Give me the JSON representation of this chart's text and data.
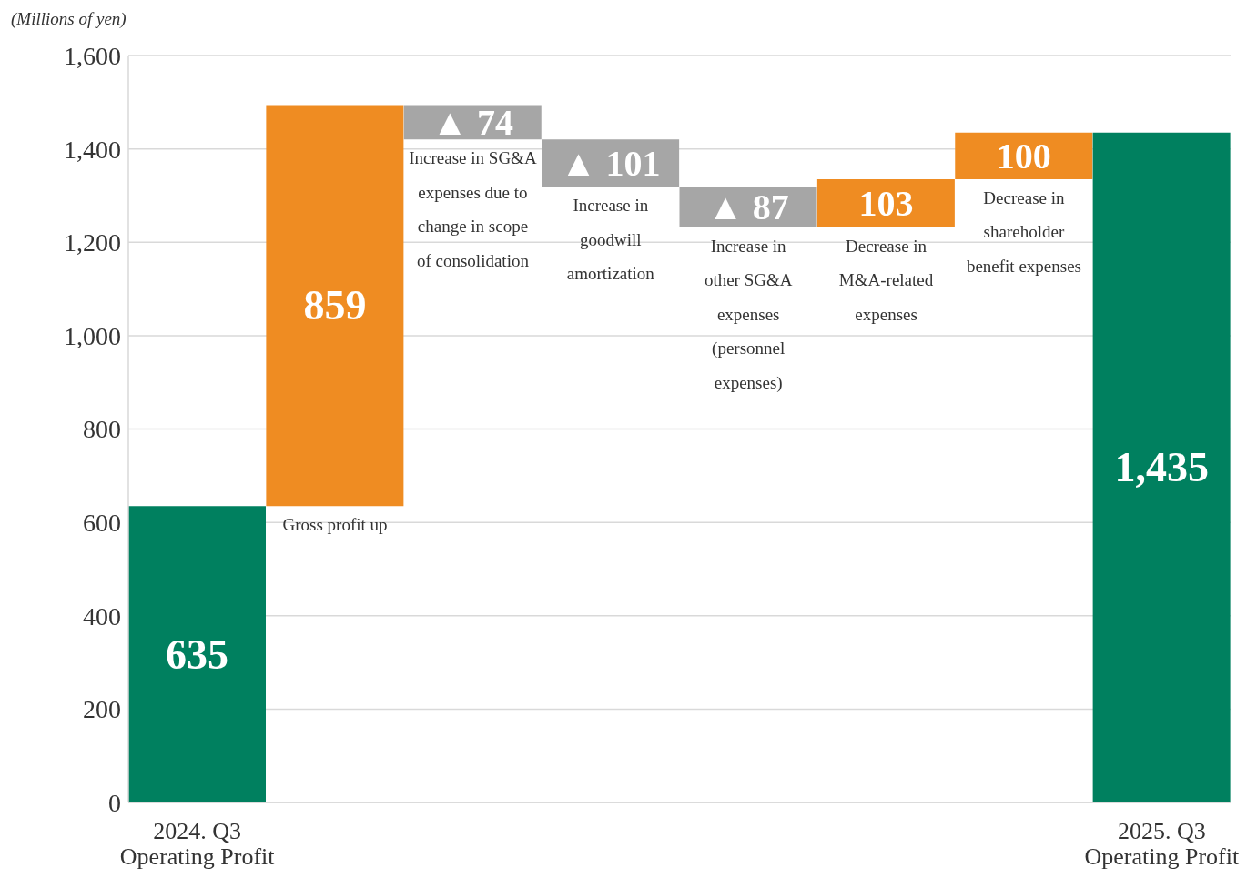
{
  "chart_data": {
    "type": "bar",
    "ylabel": "(Millions of yen)",
    "categories": [
      "2024. Q3 Operating Profit",
      "Gross profit up",
      "Increase in SG&A expenses due to change in scope of consolidation",
      "Increase in goodwill amortization",
      "Increase in other SG&A expenses (personnel expenses)",
      "Decrease in M&A-related expenses",
      "Decrease in shareholder benefit expenses",
      "2025. Q3 Operating Profit"
    ],
    "values": [
      635,
      859,
      -74,
      -101,
      -87,
      103,
      100,
      1435
    ],
    "base": [
      0,
      635,
      1494,
      1420,
      1319,
      1232,
      1335,
      0
    ],
    "colors": [
      "#00805f",
      "#ef8c22",
      "#a6a6a6",
      "#a6a6a6",
      "#a6a6a6",
      "#ef8c22",
      "#ef8c22",
      "#00805f"
    ],
    "value_labels": [
      "635",
      "859",
      "▲ 74",
      "▲ 101",
      "▲ 87",
      "103",
      "100",
      "1,435"
    ],
    "ylim": [
      0,
      1600
    ],
    "yticks": [
      0,
      {
        "value": 200,
        "label": "200"
      },
      400,
      600,
      800,
      {
        "value": 1000,
        "label": "1,000"
      },
      {
        "value": 1200,
        "label": "1,200"
      },
      {
        "value": 1400,
        "label": "1,400"
      },
      {
        "value": 1600,
        "label": "1,600"
      }
    ],
    "grid": "y"
  }
}
